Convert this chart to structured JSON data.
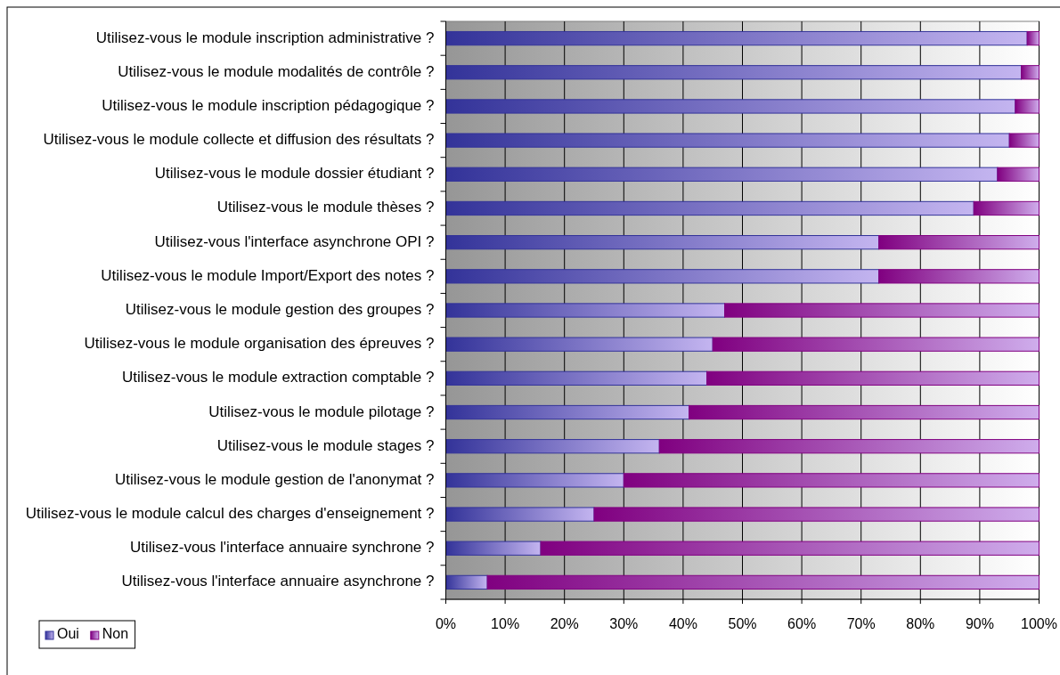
{
  "chart_data": {
    "type": "bar",
    "orientation": "horizontal",
    "stacked": true,
    "categories": [
      "Utilisez-vous le module inscription administrative ?",
      "Utilisez-vous le module modalités de contrôle ?",
      "Utilisez-vous le module inscription pédagogique ?",
      "Utilisez-vous le module collecte et diffusion des résultats ?",
      "Utilisez-vous le module dossier étudiant ?",
      "Utilisez-vous le module thèses ?",
      "Utilisez-vous l'interface asynchrone OPI ?",
      "Utilisez-vous le module Import/Export des notes ?",
      "Utilisez-vous le module gestion des groupes ?",
      "Utilisez-vous le module organisation des épreuves ?",
      "Utilisez-vous le module extraction comptable ?",
      "Utilisez-vous le module pilotage ?",
      "Utilisez-vous le module stages ?",
      "Utilisez-vous le module gestion de l'anonymat ?",
      "Utilisez-vous le module calcul des charges d'enseignement ?",
      "Utilisez-vous l'interface annuaire synchrone ?",
      "Utilisez-vous l'interface annuaire asynchrone ?"
    ],
    "series": [
      {
        "name": "Oui",
        "color": "#333399",
        "values": [
          98,
          97,
          96,
          95,
          93,
          89,
          73,
          73,
          47,
          45,
          44,
          41,
          36,
          30,
          25,
          16,
          7
        ]
      },
      {
        "name": "Non",
        "color": "#800080",
        "values": [
          2,
          3,
          4,
          5,
          7,
          11,
          27,
          27,
          53,
          55,
          56,
          59,
          64,
          70,
          75,
          84,
          93
        ]
      }
    ],
    "xlim": [
      0,
      100
    ],
    "xticks": [
      {
        "value": 0,
        "label": "0%"
      },
      {
        "value": 10,
        "label": "10%"
      },
      {
        "value": 20,
        "label": "20%"
      },
      {
        "value": 30,
        "label": "30%"
      },
      {
        "value": 40,
        "label": "40%"
      },
      {
        "value": 50,
        "label": "50%"
      },
      {
        "value": 60,
        "label": "60%"
      },
      {
        "value": 70,
        "label": "70%"
      },
      {
        "value": 80,
        "label": "80%"
      },
      {
        "value": 90,
        "label": "90%"
      },
      {
        "value": 100,
        "label": "100%"
      }
    ],
    "grid": "x",
    "legend": "bottom left"
  }
}
